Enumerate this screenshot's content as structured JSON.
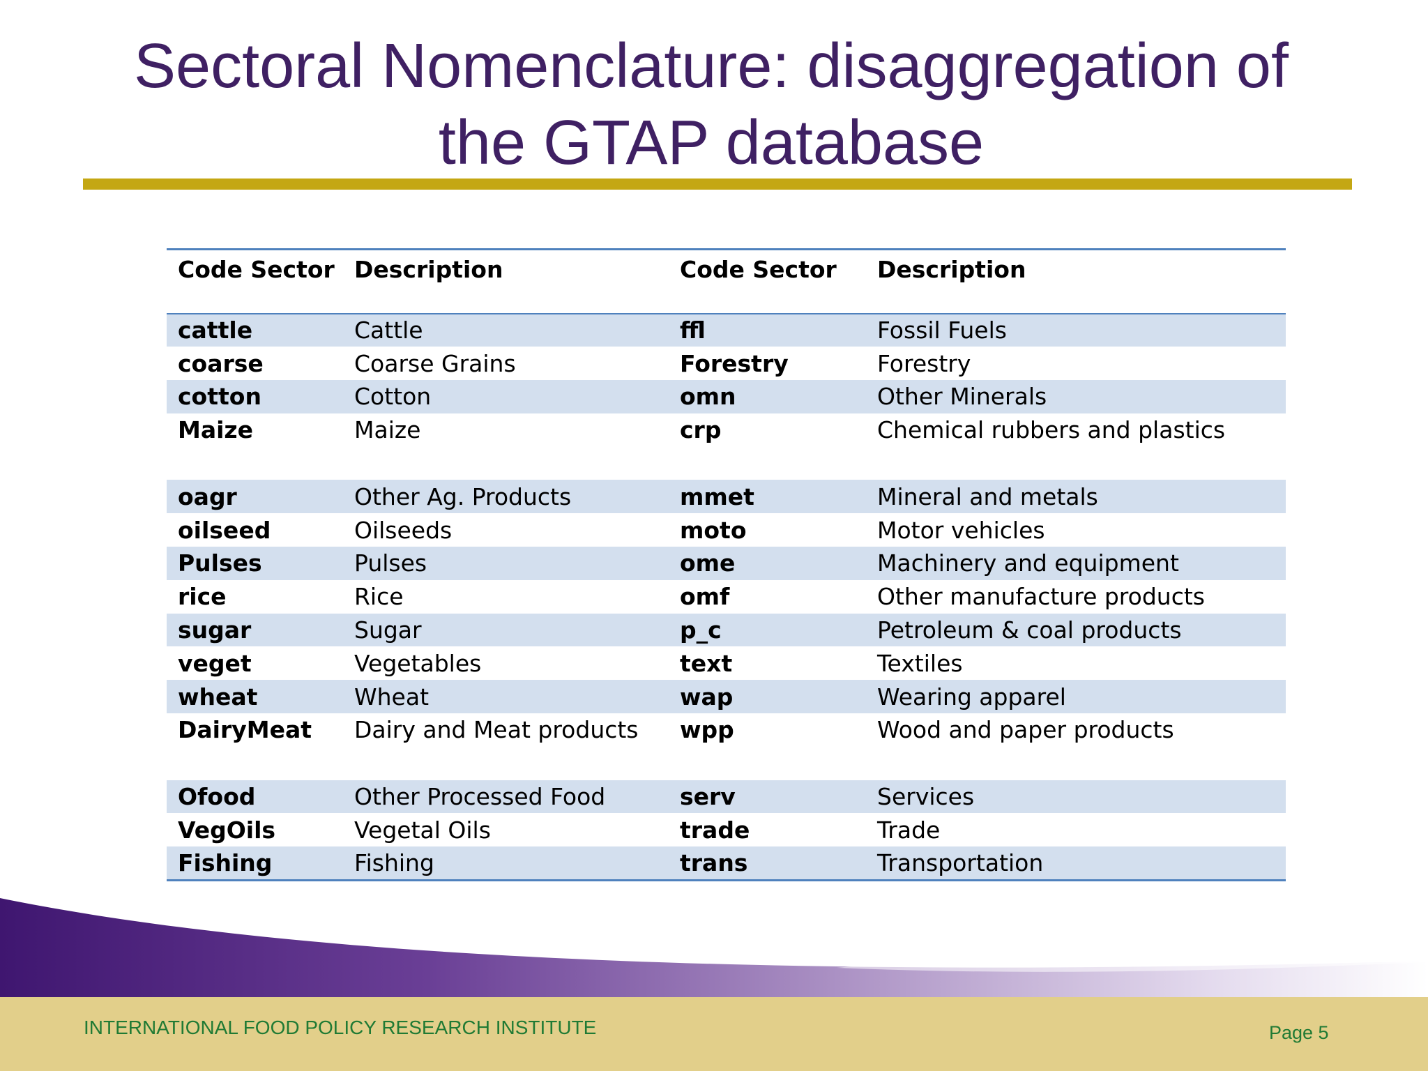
{
  "slide": {
    "title_line1": "Sectoral Nomenclature: disaggregation of",
    "title_line2": "the GTAP database",
    "colors": {
      "title": "#3f2063",
      "rule": "#c4a713",
      "table_border": "#4f81bd",
      "row_shade": "#d3dfee",
      "footer_band": "#e2cf8a",
      "footer_text": "#207a34",
      "wave_start": "#3f1670"
    }
  },
  "table": {
    "headers": [
      "Code Sector",
      "Description",
      "Code Sector",
      "Description"
    ],
    "rows": [
      {
        "code1": "cattle",
        "desc1": "Cattle",
        "code2": "ffl",
        "desc2": "Fossil Fuels"
      },
      {
        "code1": "coarse",
        "desc1": "Coarse Grains",
        "code2": "Forestry",
        "desc2": "Forestry"
      },
      {
        "code1": "cotton",
        "desc1": "Cotton",
        "code2": "omn",
        "desc2": "Other Minerals"
      },
      {
        "code1": "Maize",
        "desc1": "Maize",
        "code2": "crp",
        "desc2": "Chemical rubbers and plastics"
      },
      {
        "code1": "oagr",
        "desc1": "Other Ag. Products",
        "code2": "mmet",
        "desc2": "Mineral and metals"
      },
      {
        "code1": "oilseed",
        "desc1": "Oilseeds",
        "code2": "moto",
        "desc2": "Motor vehicles"
      },
      {
        "code1": "Pulses",
        "desc1": "Pulses",
        "code2": "ome",
        "desc2": "Machinery and equipment"
      },
      {
        "code1": "rice",
        "desc1": "Rice",
        "code2": "omf",
        "desc2": "Other manufacture products"
      },
      {
        "code1": "sugar",
        "desc1": "Sugar",
        "code2": "p_c",
        "desc2": "Petroleum & coal products"
      },
      {
        "code1": "veget",
        "desc1": "Vegetables",
        "code2": "text",
        "desc2": "Textiles"
      },
      {
        "code1": "wheat",
        "desc1": "Wheat",
        "code2": "wap",
        "desc2": "Wearing apparel"
      },
      {
        "code1": "DairyMeat",
        "desc1": "Dairy and Meat products",
        "code2": "wpp",
        "desc2": "Wood and paper products"
      },
      {
        "code1": "Ofood",
        "desc1": "Other Processed Food",
        "code2": "serv",
        "desc2": "Services"
      },
      {
        "code1": "VegOils",
        "desc1": "Vegetal Oils",
        "code2": "trade",
        "desc2": "Trade"
      },
      {
        "code1": "Fishing",
        "desc1": "Fishing",
        "code2": "trans",
        "desc2": "Transportation"
      }
    ]
  },
  "footer": {
    "organization": "INTERNATIONAL FOOD POLICY RESEARCH INSTITUTE",
    "page": "Page 5"
  }
}
